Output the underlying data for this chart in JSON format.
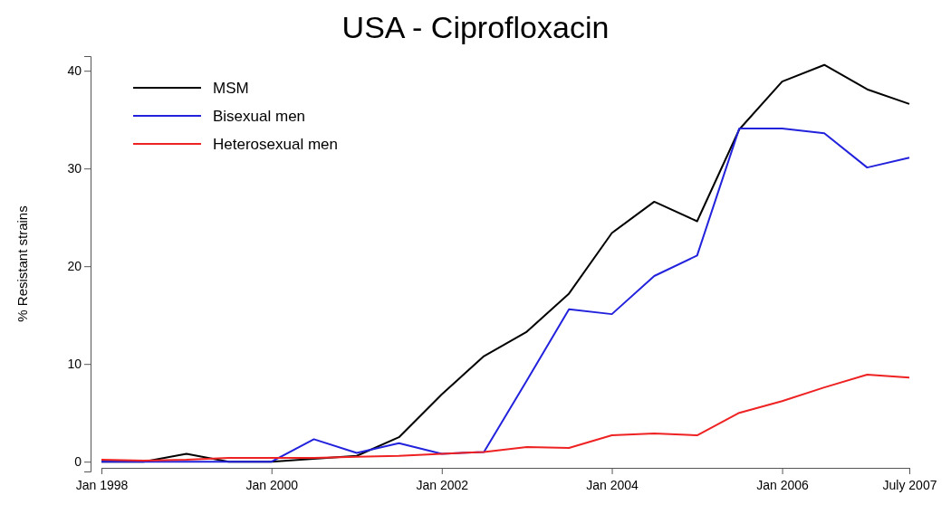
{
  "chart_data": {
    "type": "line",
    "title": "USA - Ciprofloxacin",
    "ylabel": "% Resistant strains",
    "x": [
      "1998-01",
      "1998-07",
      "1999-01",
      "1999-07",
      "2000-01",
      "2000-07",
      "2001-01",
      "2001-07",
      "2002-01",
      "2002-07",
      "2003-01",
      "2003-07",
      "2004-01",
      "2004-07",
      "2005-01",
      "2005-07",
      "2006-01",
      "2006-07",
      "2007-01",
      "2007-07"
    ],
    "series": [
      {
        "name": "MSM",
        "color": "#000000",
        "values": [
          0,
          0,
          0.8,
          0,
          0,
          0.3,
          0.6,
          2.5,
          6.9,
          10.8,
          13.3,
          17.2,
          23.4,
          26.6,
          24.6,
          34,
          38.9,
          40.6,
          38.1,
          36.6
        ]
      },
      {
        "name": "Bisexual men",
        "color": "#2222dd",
        "values": [
          0,
          0,
          0,
          0,
          0,
          2.3,
          0.9,
          1.9,
          0.8,
          1,
          8.3,
          15.6,
          15.1,
          19,
          21.1,
          34.1,
          34.1,
          33.6,
          30.1,
          31.1
        ]
      },
      {
        "name": "Heterosexual men",
        "color": "#ee2222",
        "values": [
          0.2,
          0.1,
          0.2,
          0.4,
          0.4,
          0.4,
          0.5,
          0.6,
          0.8,
          1,
          1.5,
          1.4,
          2.7,
          2.9,
          2.7,
          5,
          6.2,
          7.6,
          8.9,
          8.6
        ]
      }
    ],
    "xlim": [
      "1998-01",
      "2007-07"
    ],
    "xticks": [
      {
        "value": "1998-01",
        "label": "Jan 1998"
      },
      {
        "value": "2000-01",
        "label": "Jan 2000"
      },
      {
        "value": "2002-01",
        "label": "Jan 2002"
      },
      {
        "value": "2004-01",
        "label": "Jan 2004"
      },
      {
        "value": "2006-01",
        "label": "Jan 2006"
      },
      {
        "value": "2007-07",
        "label": "July 2007"
      }
    ],
    "ylim": [
      -1,
      41.5
    ],
    "yticks": [
      0,
      10,
      20,
      30,
      40
    ],
    "legend": "top left",
    "grid": false,
    "marker": "none",
    "line_style": "solid"
  }
}
